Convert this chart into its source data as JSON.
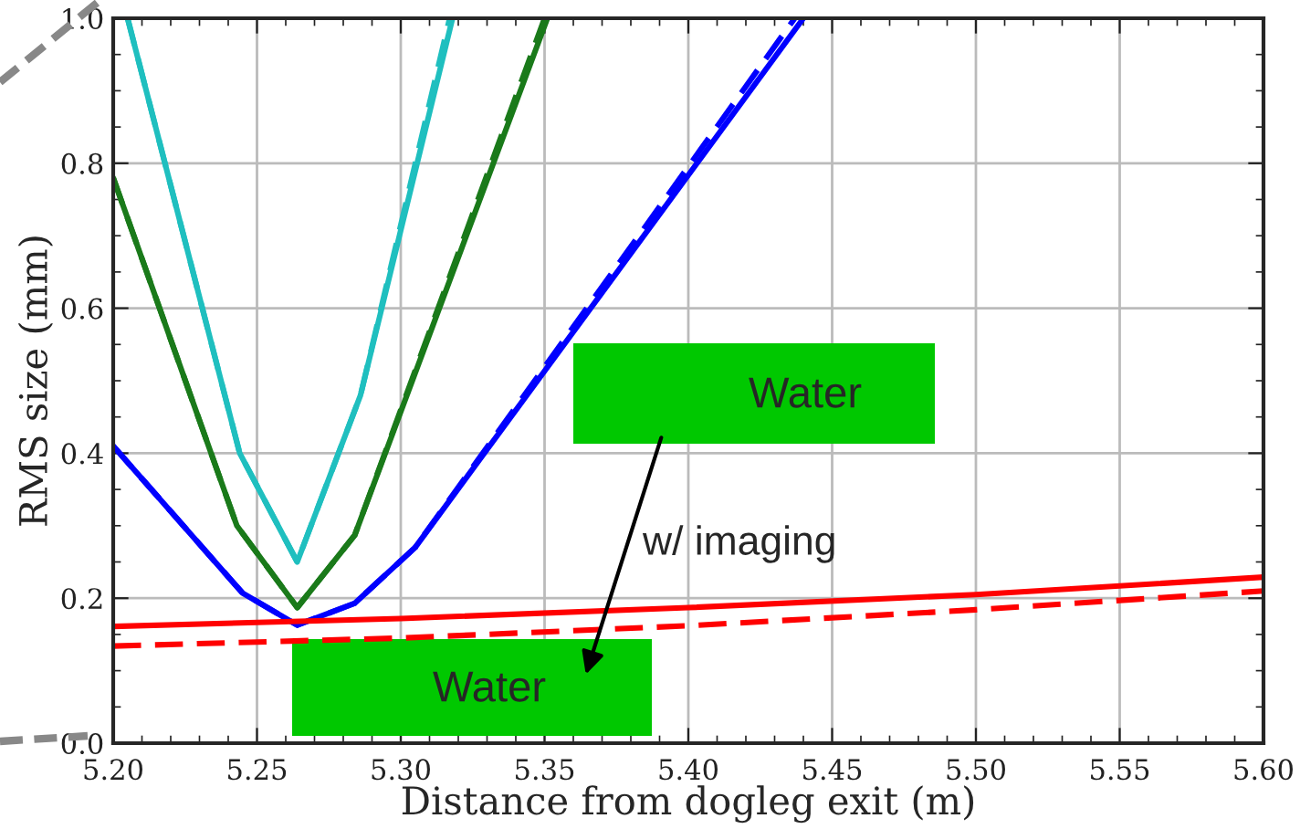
{
  "chart_data": {
    "type": "line",
    "xlabel": "Distance from dogleg exit (m)",
    "ylabel": "RMS size (mm)",
    "xlim": [
      5.2,
      5.6
    ],
    "ylim": [
      0.0,
      1.0
    ],
    "xticks": [
      {
        "value": 5.2,
        "label": "5.20"
      },
      {
        "value": 5.25,
        "label": "5.25"
      },
      {
        "value": 5.3,
        "label": "5.30"
      },
      {
        "value": 5.35,
        "label": "5.35"
      },
      {
        "value": 5.4,
        "label": "5.40"
      },
      {
        "value": 5.45,
        "label": "5.45"
      },
      {
        "value": 5.5,
        "label": "5.50"
      },
      {
        "value": 5.55,
        "label": "5.55"
      },
      {
        "value": 5.6,
        "label": "5.60"
      }
    ],
    "yticks": [
      {
        "value": 0.0,
        "label": "0.0"
      },
      {
        "value": 0.2,
        "label": "0.2"
      },
      {
        "value": 0.4,
        "label": "0.4"
      },
      {
        "value": 0.6,
        "label": "0.6"
      },
      {
        "value": 0.8,
        "label": "0.8"
      },
      {
        "value": 1.0,
        "label": "1.0"
      }
    ],
    "grid": true,
    "legend": false,
    "marker": "none",
    "series": [
      {
        "color": "#1fbfbf",
        "line_style": "solid",
        "x": [
          5.205,
          5.244,
          5.264,
          5.286,
          5.318
        ],
        "values": [
          1.0,
          0.4,
          0.25,
          0.48,
          1.0
        ]
      },
      {
        "color": "#1fbfbf",
        "line_style": "dashed",
        "x": [
          5.205,
          5.244,
          5.264,
          5.286,
          5.317
        ],
        "values": [
          1.0,
          0.4,
          0.25,
          0.48,
          1.0
        ]
      },
      {
        "color": "#1a7a1a",
        "line_style": "solid",
        "x": [
          5.2,
          5.243,
          5.264,
          5.284,
          5.351
        ],
        "values": [
          0.78,
          0.3,
          0.187,
          0.287,
          1.0
        ]
      },
      {
        "color": "#1a7a1a",
        "line_style": "dashed",
        "x": [
          5.2,
          5.243,
          5.264,
          5.284,
          5.35
        ],
        "values": [
          0.78,
          0.3,
          0.187,
          0.287,
          1.0
        ]
      },
      {
        "color": "#0000ff",
        "line_style": "solid",
        "x": [
          5.2,
          5.245,
          5.264,
          5.284,
          5.305,
          5.44
        ],
        "values": [
          0.41,
          0.207,
          0.163,
          0.193,
          0.27,
          1.0
        ]
      },
      {
        "color": "#0000ff",
        "line_style": "dashed",
        "x": [
          5.2,
          5.245,
          5.264,
          5.284,
          5.305,
          5.437
        ],
        "values": [
          0.41,
          0.207,
          0.163,
          0.193,
          0.27,
          1.0
        ]
      },
      {
        "color": "#ff0000",
        "line_style": "solid",
        "x": [
          5.2,
          5.3,
          5.4,
          5.5,
          5.6
        ],
        "values": [
          0.161,
          0.172,
          0.187,
          0.205,
          0.229
        ]
      },
      {
        "color": "#ff0000",
        "line_style": "dashed",
        "x": [
          5.2,
          5.3,
          5.4,
          5.5,
          5.6
        ],
        "values": [
          0.134,
          0.145,
          0.162,
          0.184,
          0.21
        ]
      }
    ],
    "annotations": [
      "Water",
      "w/ imaging",
      "Water"
    ]
  }
}
